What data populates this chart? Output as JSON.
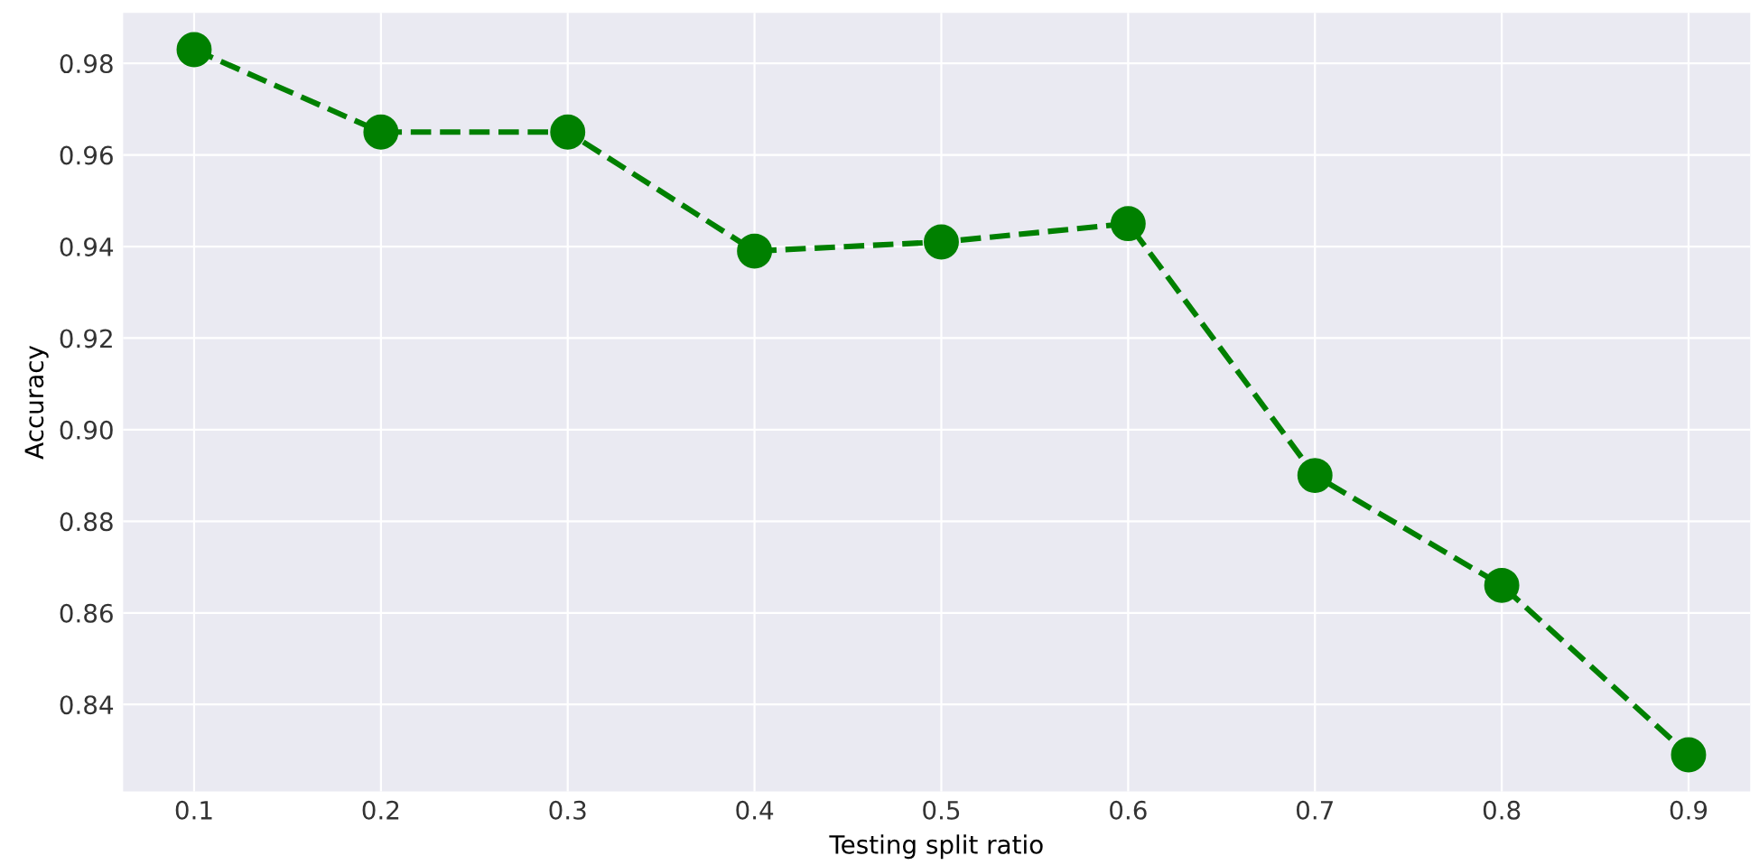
{
  "chart_data": {
    "type": "line",
    "xlabel": "Testing split ratio",
    "ylabel": "Accuracy",
    "x": [
      0.1,
      0.2,
      0.3,
      0.4,
      0.5,
      0.6,
      0.7,
      0.8,
      0.9
    ],
    "series": [
      {
        "color": "#008000",
        "values": [
          0.983,
          0.965,
          0.965,
          0.939,
          0.941,
          0.945,
          0.89,
          0.866,
          0.829
        ]
      }
    ],
    "xlim": [
      0.062,
      0.933
    ],
    "xticks": [
      0.1,
      0.2,
      0.3,
      0.4,
      0.5,
      0.6,
      0.7,
      0.8,
      0.9
    ],
    "ylim": [
      0.821,
      0.991
    ],
    "yticks": [
      0.84,
      0.86,
      0.88,
      {
        "value": 0.9,
        "label": "0.90"
      },
      0.92,
      0.94,
      0.96,
      0.98
    ],
    "grid": true,
    "marker": "circle",
    "line_style": "dashed"
  }
}
